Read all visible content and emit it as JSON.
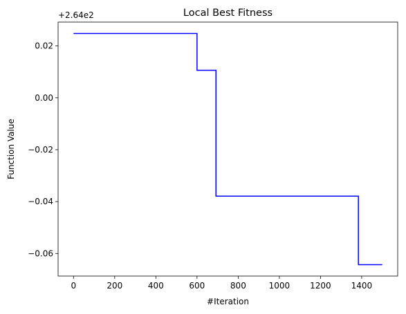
{
  "chart_data": {
    "type": "line",
    "title": "Local Best Fitness",
    "xlabel": "#Iteration",
    "ylabel": "Function Value",
    "offset_label": "+2.64e2",
    "xlim": [
      -75,
      1575
    ],
    "ylim": [
      -0.0687,
      0.0292
    ],
    "xticks": [
      0,
      200,
      400,
      600,
      800,
      1000,
      1200,
      1400
    ],
    "xtick_labels": [
      "0",
      "200",
      "400",
      "600",
      "800",
      "1000",
      "1200",
      "1400"
    ],
    "yticks": [
      -0.06,
      -0.04,
      -0.02,
      0.0,
      0.02
    ],
    "ytick_labels": [
      "−0.06",
      "−0.04",
      "−0.02",
      "0.00",
      "0.02"
    ],
    "grid": false,
    "series": [
      {
        "color": "#0000ff",
        "step_points": [
          [
            0,
            0.0248
          ],
          [
            600,
            0.0248
          ],
          [
            600,
            0.0106
          ],
          [
            692,
            0.0106
          ],
          [
            692,
            -0.0379
          ],
          [
            1384,
            -0.0379
          ],
          [
            1384,
            -0.0643
          ],
          [
            1500,
            -0.0643
          ]
        ]
      }
    ]
  }
}
